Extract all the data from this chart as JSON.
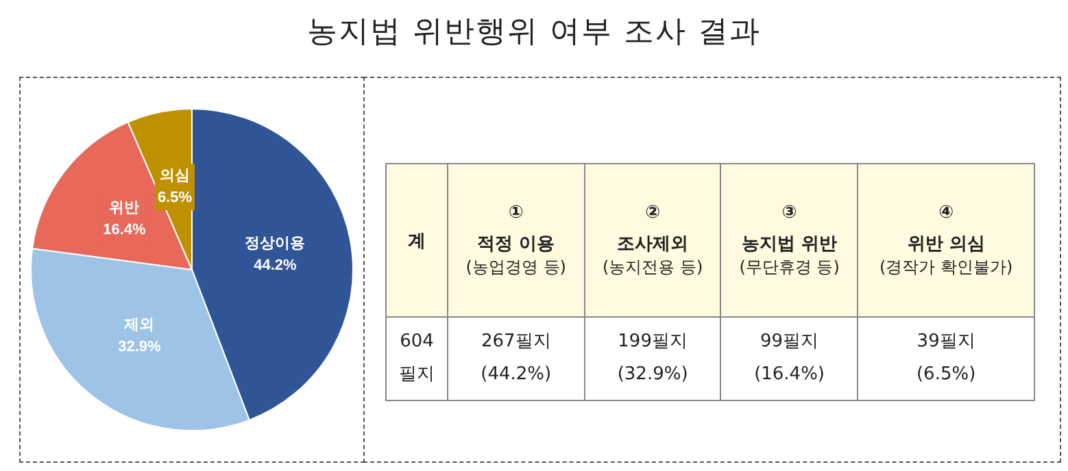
{
  "chart_data": {
    "type": "pie",
    "title": "농지법 위반행위 여부 조사 결과",
    "categories": [
      "정상이용",
      "제외",
      "위반",
      "의심"
    ],
    "values": [
      44.2,
      32.9,
      16.4,
      6.5
    ],
    "value_labels": [
      "44.2%",
      "32.9%",
      "16.4%",
      "6.5%"
    ],
    "colors": [
      "#2f5597",
      "#9dc3e6",
      "#e8685a",
      "#bf9000"
    ],
    "legend": false,
    "annotations": [
      "계",
      "①",
      "적정 이용",
      "(농업경영 등)",
      "②",
      "조사제외",
      "(농지전용 등)",
      "③",
      "농지법 위반",
      "(무단휴경 등)",
      "④",
      "위반 의심",
      "(경작가 확인불가)",
      "604 필지",
      "267필지",
      "(44.2%)",
      "199필지",
      "(32.9%)",
      "99필지",
      "(16.4%)",
      "39필지",
      "(6.5%)"
    ]
  }
}
